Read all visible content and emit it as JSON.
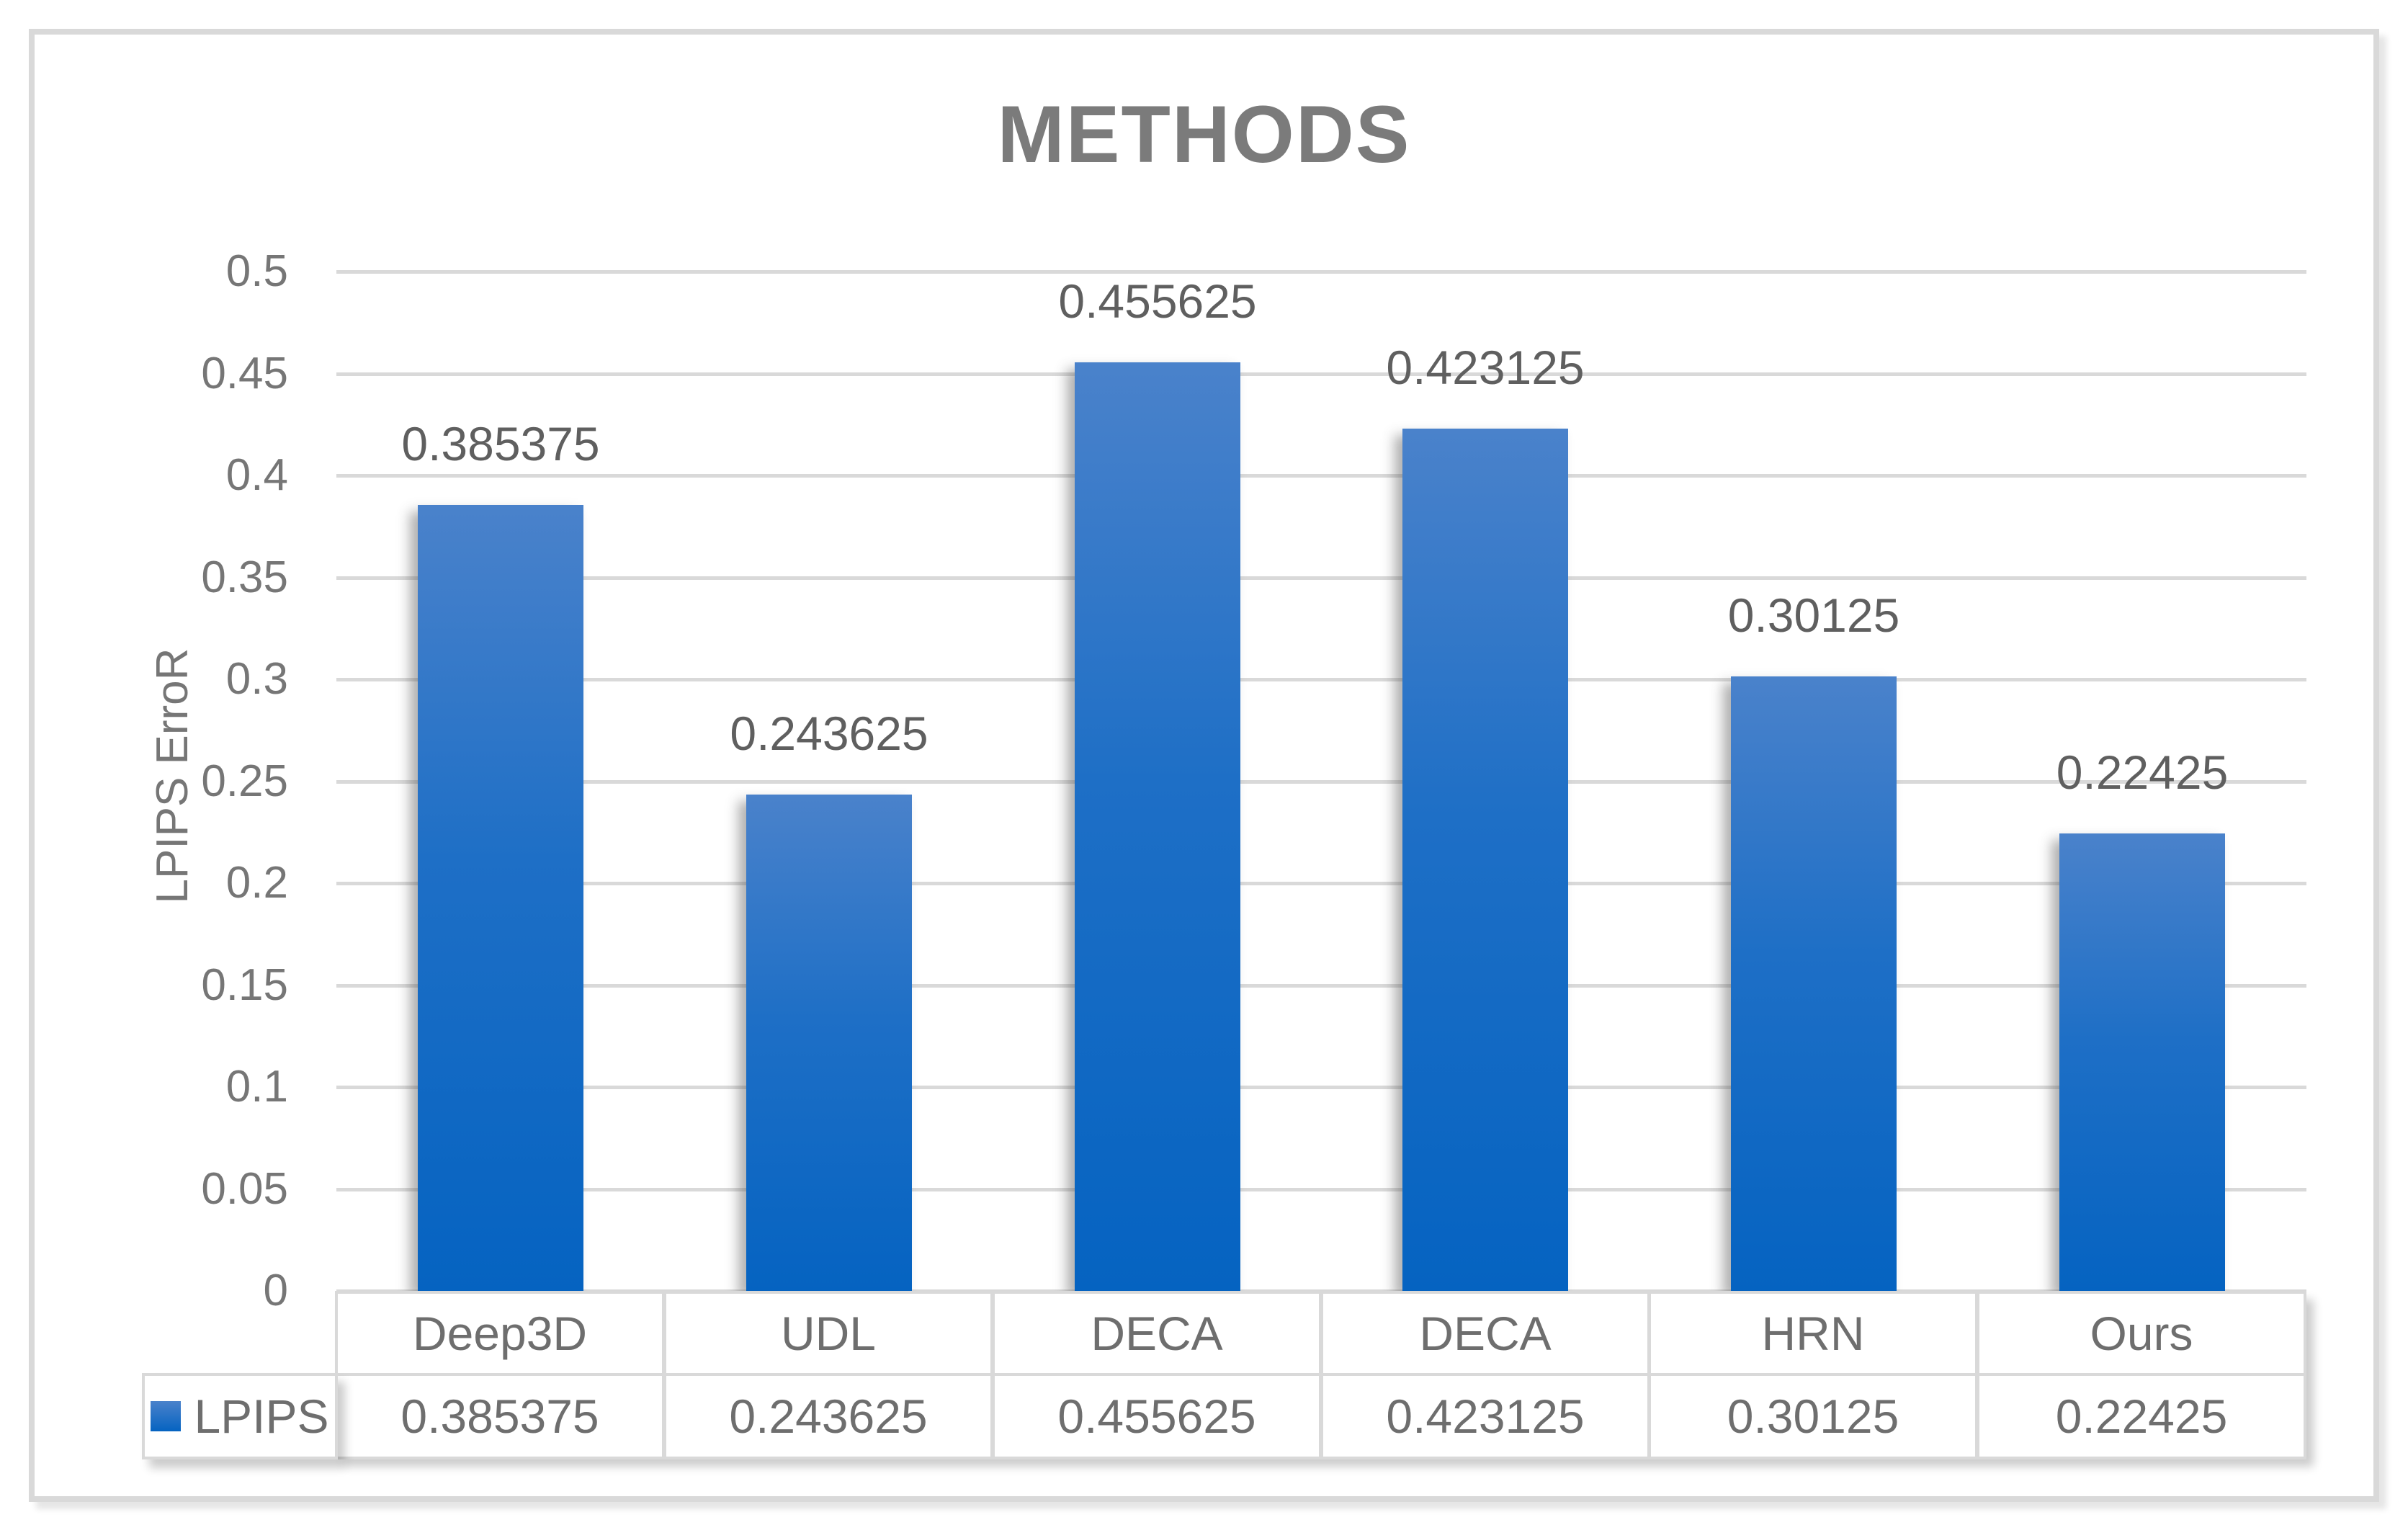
{
  "title": "METHODS",
  "y_axis_label": "LPIPS ErroR",
  "legend": {
    "series_label": "LPIPS",
    "swatch_icon": "blue-gradient-square",
    "swatch_color_top": "#4a82cb",
    "swatch_color_bottom": "#0563c1"
  },
  "colors": {
    "bar_top": "#4a82cb",
    "bar_bottom": "#0563c1",
    "gridline": "#d9d9d9",
    "frame_border": "#d9d9d9",
    "title_text": "#7b7b7b",
    "tick_text": "#767676",
    "value_label_text": "#5f5f5f",
    "table_text": "#6e6e6e"
  },
  "chart_data": {
    "type": "bar",
    "title": "METHODS",
    "categories": [
      "Deep3D",
      "UDL",
      "DECA",
      "DECA",
      "HRN",
      "Ours"
    ],
    "series": [
      {
        "name": "LPIPS",
        "values": [
          0.385375,
          0.243625,
          0.455625,
          0.423125,
          0.30125,
          0.22425
        ]
      }
    ],
    "value_labels": [
      "0.385375",
      "0.243625",
      "0.455625",
      "0.423125",
      "0.30125",
      "0.22425"
    ],
    "xlabel": "",
    "ylabel": "LPIPS ErroR",
    "ylim": [
      0,
      0.5
    ],
    "ytick_step": 0.05,
    "yticks_top_to_bottom": [
      "0.5",
      "0.45",
      "0.4",
      "0.35",
      "0.3",
      "0.25",
      "0.2",
      "0.15",
      "0.1",
      "0.05",
      "0"
    ],
    "grid": true,
    "legend_position": "bottom-left-of-data-table",
    "data_table_shown": true,
    "data_table_rows": [
      {
        "row_label": "LPIPS",
        "cells": [
          "0.385375",
          "0.243625",
          "0.455625",
          "0.423125",
          "0.30125",
          "0.22425"
        ]
      }
    ]
  }
}
